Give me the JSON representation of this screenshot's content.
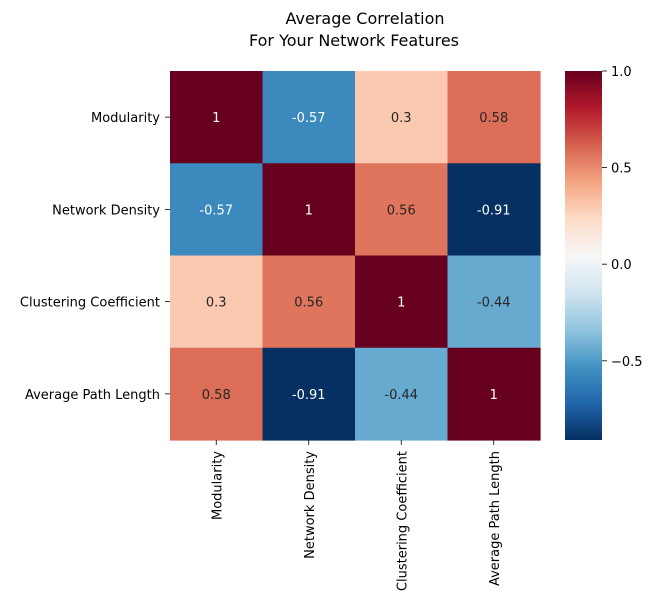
{
  "chart_data": {
    "type": "heatmap",
    "title_lines": [
      "Average Correlation",
      "For Your Network Features"
    ],
    "row_labels": [
      "Modularity",
      "Network Density",
      "Clustering Coefficient",
      "Average Path Length"
    ],
    "col_labels": [
      "Modularity",
      "Network Density",
      "Clustering Coefficient",
      "Average Path Length"
    ],
    "values": [
      [
        1,
        -0.57,
        0.3,
        0.58
      ],
      [
        -0.57,
        1,
        0.56,
        -0.91
      ],
      [
        0.3,
        0.56,
        1,
        -0.44
      ],
      [
        0.58,
        -0.91,
        -0.44,
        1
      ]
    ],
    "cell_labels": [
      [
        "1",
        "-0.57",
        "0.3",
        "0.58"
      ],
      [
        "-0.57",
        "1",
        "0.56",
        "-0.91"
      ],
      [
        "0.3",
        "0.56",
        "1",
        "-0.44"
      ],
      [
        "0.58",
        "-0.91",
        "-0.44",
        "1"
      ]
    ],
    "colorbar": {
      "colormap": "RdBu_r",
      "vmin": -0.91,
      "vmax": 1.0,
      "ticks": [
        1.0,
        0.5,
        0.0,
        -0.5
      ],
      "tick_labels": [
        "1.0",
        "0.5",
        "0.0",
        "−0.5"
      ]
    },
    "xlabel": "",
    "ylabel": ""
  }
}
